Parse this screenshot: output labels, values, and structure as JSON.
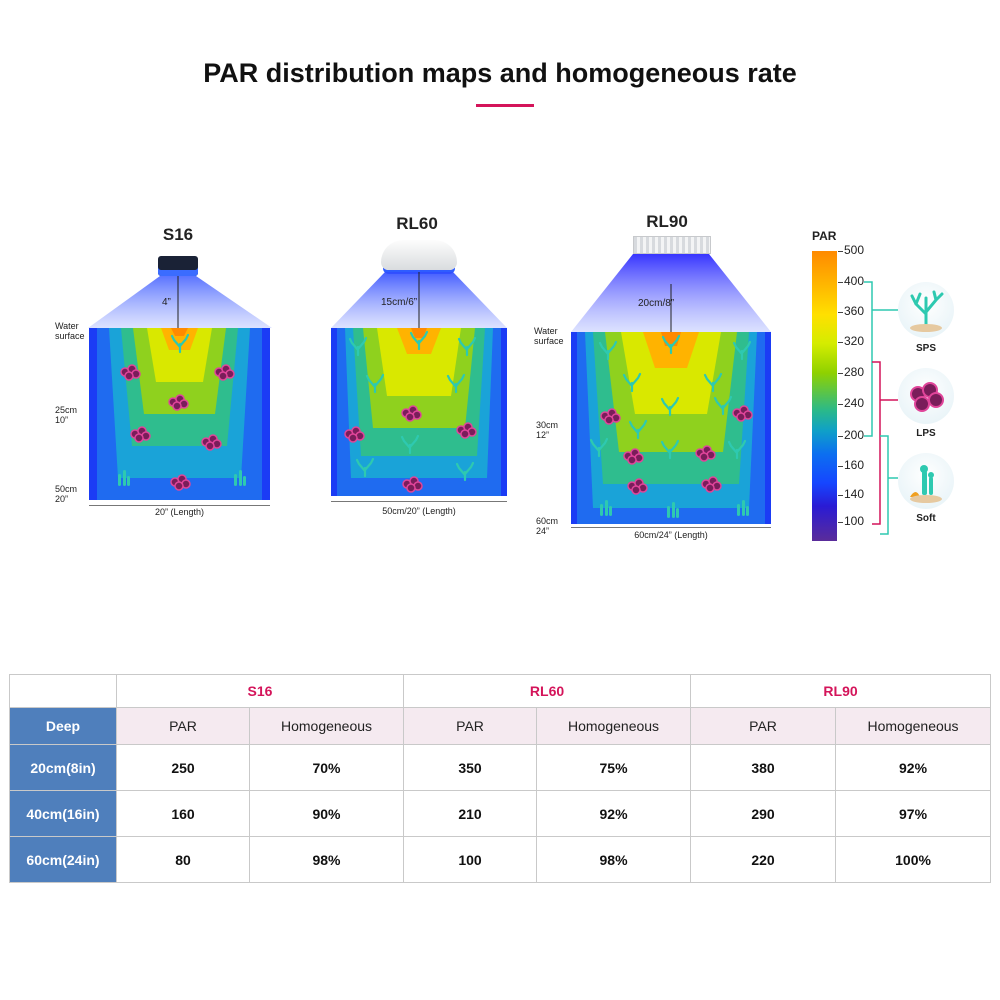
{
  "page": {
    "title": "PAR distribution maps and homogeneous rate",
    "accent_color": "#d4145a"
  },
  "maps": [
    {
      "name": "S16",
      "mount_height": "4”",
      "water_label": "Water\nsurface",
      "mid_depth": "25cm\n10”",
      "bottom_depth": "50cm\n20”",
      "length_label": "20”  (Length)"
    },
    {
      "name": "RL60",
      "mount_height": "15cm/6”",
      "length_label": "50cm/20”  (Length)"
    },
    {
      "name": "RL90",
      "mount_height": "20cm/8”",
      "water_label": "Water\nsurface",
      "mid_depth": "30cm\n12”",
      "bottom_depth": "60cm\n24”",
      "length_label": "60cm/24”  (Length)"
    }
  ],
  "legend": {
    "title": "PAR",
    "ticks": [
      "500",
      "400",
      "360",
      "320",
      "280",
      "240",
      "200",
      "160",
      "140",
      "100"
    ],
    "categories": [
      {
        "label": "SPS",
        "icon": "sps-coral-icon"
      },
      {
        "label": "LPS",
        "icon": "lps-coral-icon"
      },
      {
        "label": "Soft",
        "icon": "soft-coral-icon"
      }
    ],
    "colors": {
      "sps": "#2ec9b0",
      "lps": "#d4145a",
      "soft": "#2ec9b0"
    }
  },
  "table": {
    "deep_header": "Deep",
    "models": [
      "S16",
      "RL60",
      "RL90"
    ],
    "col_par": "PAR",
    "col_homo": "Homogeneous",
    "rows": [
      {
        "deep": "20cm(8in)",
        "values": [
          "250",
          "70%",
          "350",
          "75%",
          "380",
          "92%"
        ]
      },
      {
        "deep": "40cm(16in)",
        "values": [
          "160",
          "90%",
          "210",
          "92%",
          "290",
          "97%"
        ]
      },
      {
        "deep": "60cm(24in)",
        "values": [
          "80",
          "98%",
          "100",
          "98%",
          "220",
          "100%"
        ]
      }
    ],
    "colors": {
      "header_blue": "#4f7fbc",
      "model_text": "#d4145a",
      "subhead_bg": "#f5eaf0"
    }
  }
}
